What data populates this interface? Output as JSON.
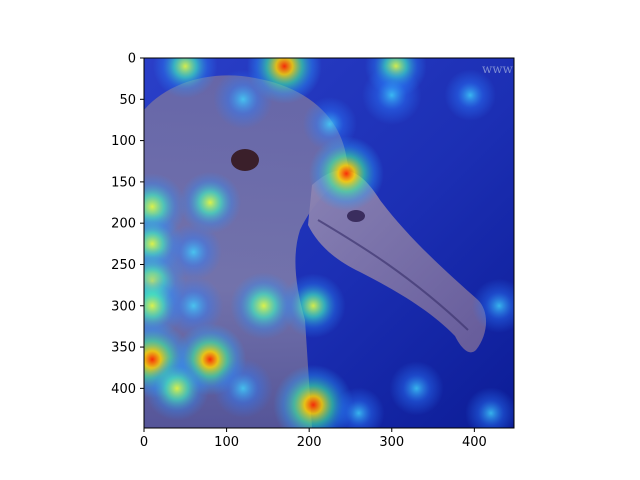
{
  "chart_data": {
    "type": "heatmap",
    "title": "",
    "xlabel": "",
    "ylabel": "",
    "xlim": [
      0,
      448
    ],
    "ylim": [
      448,
      0
    ],
    "x_ticks": [
      0,
      100,
      200,
      300,
      400
    ],
    "y_ticks": [
      0,
      50,
      100,
      150,
      200,
      250,
      300,
      350,
      400
    ],
    "image_description": "Attention heatmap (jet colormap) overlaid on a close-up of an albatross head with a long hooked beak",
    "watermark_text": "www",
    "heat_spots": [
      {
        "x": 50,
        "y": 10,
        "intensity": 0.55
      },
      {
        "x": 170,
        "y": 10,
        "intensity": 0.75
      },
      {
        "x": 305,
        "y": 10,
        "intensity": 0.5
      },
      {
        "x": 120,
        "y": 50,
        "intensity": 0.45
      },
      {
        "x": 300,
        "y": 45,
        "intensity": 0.45
      },
      {
        "x": 225,
        "y": 80,
        "intensity": 0.35
      },
      {
        "x": 395,
        "y": 45,
        "intensity": 0.3
      },
      {
        "x": 245,
        "y": 140,
        "intensity": 0.75
      },
      {
        "x": 80,
        "y": 175,
        "intensity": 0.5
      },
      {
        "x": 10,
        "y": 180,
        "intensity": 0.6
      },
      {
        "x": 10,
        "y": 225,
        "intensity": 0.5
      },
      {
        "x": 60,
        "y": 235,
        "intensity": 0.4
      },
      {
        "x": 10,
        "y": 270,
        "intensity": 0.6
      },
      {
        "x": 145,
        "y": 300,
        "intensity": 0.6
      },
      {
        "x": 205,
        "y": 300,
        "intensity": 0.55
      },
      {
        "x": 10,
        "y": 300,
        "intensity": 0.55
      },
      {
        "x": 60,
        "y": 300,
        "intensity": 0.45
      },
      {
        "x": 10,
        "y": 365,
        "intensity": 0.8
      },
      {
        "x": 80,
        "y": 365,
        "intensity": 0.7
      },
      {
        "x": 40,
        "y": 400,
        "intensity": 0.55
      },
      {
        "x": 120,
        "y": 400,
        "intensity": 0.45
      },
      {
        "x": 205,
        "y": 420,
        "intensity": 0.85
      },
      {
        "x": 330,
        "y": 400,
        "intensity": 0.35
      },
      {
        "x": 260,
        "y": 430,
        "intensity": 0.3
      },
      {
        "x": 420,
        "y": 430,
        "intensity": 0.3
      },
      {
        "x": 430,
        "y": 300,
        "intensity": 0.35
      }
    ]
  },
  "colors": {
    "background_blue": "#1a2ea8",
    "deep_blue": "#0a1a8c",
    "bird_tint": "#6e6c9e",
    "beak_tint": "#8a7aa6",
    "eye": "#3a1f2a",
    "axis": "#000000"
  }
}
